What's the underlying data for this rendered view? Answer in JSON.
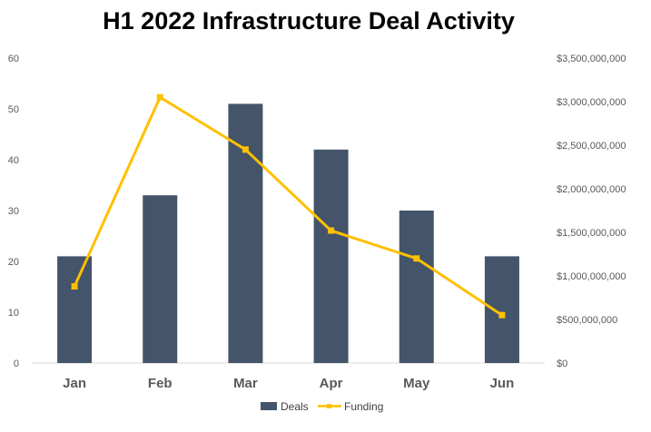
{
  "chart_data": {
    "type": "bar",
    "title": "H1 2022 Infrastructure Deal Activity",
    "categories": [
      "Jan",
      "Feb",
      "Mar",
      "Apr",
      "May",
      "Jun"
    ],
    "series": [
      {
        "name": "Deals",
        "type": "bar",
        "axis": "left",
        "values": [
          21,
          33,
          51,
          42,
          30,
          21
        ],
        "color": "#44546a"
      },
      {
        "name": "Funding",
        "type": "line",
        "axis": "right",
        "values": [
          880000000,
          3050000000,
          2450000000,
          1520000000,
          1200000000,
          550000000
        ],
        "color": "#ffc000"
      }
    ],
    "y_left": {
      "min": 0,
      "max": 60,
      "ticks": [
        0,
        10,
        20,
        30,
        40,
        50,
        60
      ]
    },
    "y_right": {
      "min": 0,
      "max": 3500000000,
      "ticks": [
        "$0",
        "$500,000,000",
        "$1,000,000,000",
        "$1,500,000,000",
        "$2,000,000,000",
        "$2,500,000,000",
        "$3,000,000,000",
        "$3,500,000,000"
      ]
    },
    "grid": false,
    "legend_position": "bottom"
  }
}
